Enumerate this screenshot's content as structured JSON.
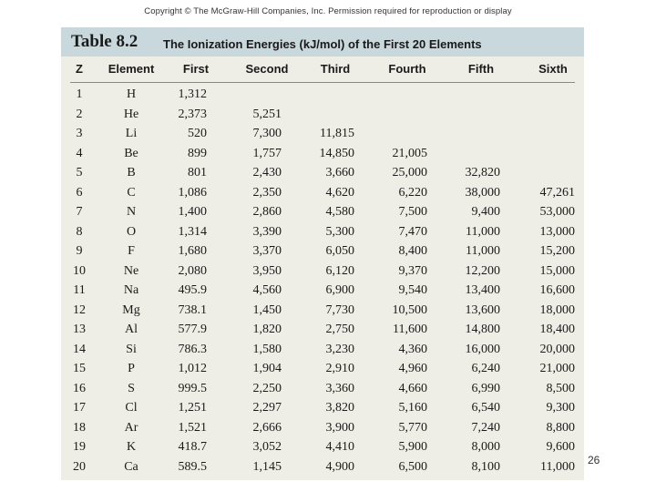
{
  "copyright": "Copyright © The McGraw-Hill Companies, Inc. Permission required for reproduction or display",
  "table_label": "Table 8.2",
  "table_caption": "The Ionization Energies (kJ/mol) of the First 20 Elements",
  "headers": [
    "Z",
    "Element",
    "First",
    "Second",
    "Third",
    "Fourth",
    "Fifth",
    "Sixth"
  ],
  "rows": [
    [
      "1",
      "H",
      "1,312",
      "",
      "",
      "",
      "",
      ""
    ],
    [
      "2",
      "He",
      "2,373",
      "5,251",
      "",
      "",
      "",
      ""
    ],
    [
      "3",
      "Li",
      "520",
      "7,300",
      "11,815",
      "",
      "",
      ""
    ],
    [
      "4",
      "Be",
      "899",
      "1,757",
      "14,850",
      "21,005",
      "",
      ""
    ],
    [
      "5",
      "B",
      "801",
      "2,430",
      "3,660",
      "25,000",
      "32,820",
      ""
    ],
    [
      "6",
      "C",
      "1,086",
      "2,350",
      "4,620",
      "6,220",
      "38,000",
      "47,261"
    ],
    [
      "7",
      "N",
      "1,400",
      "2,860",
      "4,580",
      "7,500",
      "9,400",
      "53,000"
    ],
    [
      "8",
      "O",
      "1,314",
      "3,390",
      "5,300",
      "7,470",
      "11,000",
      "13,000"
    ],
    [
      "9",
      "F",
      "1,680",
      "3,370",
      "6,050",
      "8,400",
      "11,000",
      "15,200"
    ],
    [
      "10",
      "Ne",
      "2,080",
      "3,950",
      "6,120",
      "9,370",
      "12,200",
      "15,000"
    ],
    [
      "11",
      "Na",
      "495.9",
      "4,560",
      "6,900",
      "9,540",
      "13,400",
      "16,600"
    ],
    [
      "12",
      "Mg",
      "738.1",
      "1,450",
      "7,730",
      "10,500",
      "13,600",
      "18,000"
    ],
    [
      "13",
      "Al",
      "577.9",
      "1,820",
      "2,750",
      "11,600",
      "14,800",
      "18,400"
    ],
    [
      "14",
      "Si",
      "786.3",
      "1,580",
      "3,230",
      "4,360",
      "16,000",
      "20,000"
    ],
    [
      "15",
      "P",
      "1,012",
      "1,904",
      "2,910",
      "4,960",
      "6,240",
      "21,000"
    ],
    [
      "16",
      "S",
      "999.5",
      "2,250",
      "3,360",
      "4,660",
      "6,990",
      "8,500"
    ],
    [
      "17",
      "Cl",
      "1,251",
      "2,297",
      "3,820",
      "5,160",
      "6,540",
      "9,300"
    ],
    [
      "18",
      "Ar",
      "1,521",
      "2,666",
      "3,900",
      "5,770",
      "7,240",
      "8,800"
    ],
    [
      "19",
      "K",
      "418.7",
      "3,052",
      "4,410",
      "5,900",
      "8,000",
      "9,600"
    ],
    [
      "20",
      "Ca",
      "589.5",
      "1,145",
      "4,900",
      "6,500",
      "8,100",
      "11,000"
    ]
  ],
  "slide_number": "26"
}
